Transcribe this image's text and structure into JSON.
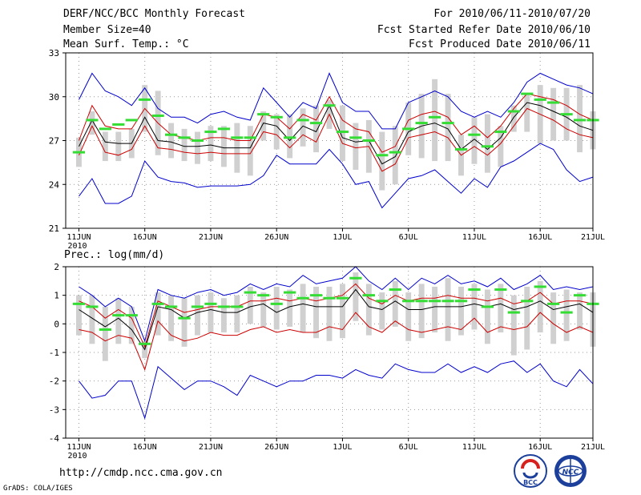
{
  "header": {
    "line1_left": "DERF/NCC/BCC Monthly Forecast",
    "line2_left": "Member Size=40",
    "line3_left": "Mean Surf. Temp.: °C",
    "line1_right": "For 2010/06/11-2010/07/20",
    "line2_right": "Fcst Started Refer Date 2010/06/10",
    "line3_right": "Fcst Produced Date 2010/06/11"
  },
  "footer": {
    "url": "http://cmdp.ncc.cma.gov.cn",
    "credit": "GrADS: COLA/IGES",
    "logo1_text": "BCC",
    "logo2_text": "NCC"
  },
  "colors": {
    "envelope": "#0000cc",
    "spread": "#cc0000",
    "mean": "#000000",
    "bar": "#d0d0d0",
    "marker": "#33dd33",
    "grid": "#999999"
  },
  "chart_data": [
    {
      "type": "line",
      "name": "temperature",
      "title": "Mean Surf. Temp.: °C",
      "ylim": [
        21,
        33
      ],
      "yticks": [
        21,
        24,
        27,
        30,
        33
      ],
      "x_range": [
        0,
        40
      ],
      "xticks": [
        {
          "x": 1,
          "label": "11JUN",
          "sub": "2010"
        },
        {
          "x": 6,
          "label": "16JUN",
          "sub": ""
        },
        {
          "x": 11,
          "label": "21JUN",
          "sub": ""
        },
        {
          "x": 16,
          "label": "26JUN",
          "sub": ""
        },
        {
          "x": 21,
          "label": "1JUL",
          "sub": ""
        },
        {
          "x": 26,
          "label": "6JUL",
          "sub": ""
        },
        {
          "x": 31,
          "label": "11JUL",
          "sub": ""
        },
        {
          "x": 36,
          "label": "16JUL",
          "sub": ""
        },
        {
          "x": 40,
          "label": "21JUL",
          "sub": ""
        }
      ],
      "grid": true,
      "series": [
        {
          "name": "max",
          "role": "envelope",
          "values": [
            29.8,
            31.6,
            30.4,
            30.0,
            29.4,
            30.6,
            29.2,
            28.6,
            28.6,
            28.2,
            28.8,
            29.0,
            28.6,
            28.4,
            30.6,
            29.6,
            28.6,
            29.6,
            29.2,
            31.6,
            29.6,
            29.0,
            29.0,
            27.8,
            27.8,
            29.6,
            30.0,
            30.4,
            30.0,
            29.0,
            28.6,
            29.0,
            28.6,
            29.6,
            31.0,
            31.6,
            31.2,
            30.8,
            30.6,
            30.2
          ]
        },
        {
          "name": "upper",
          "role": "spread",
          "values": [
            27.0,
            29.4,
            28.0,
            27.8,
            27.8,
            29.2,
            28.2,
            27.4,
            27.2,
            27.0,
            27.2,
            27.2,
            27.0,
            27.0,
            28.8,
            28.6,
            27.8,
            28.8,
            28.4,
            30.0,
            28.4,
            27.8,
            27.6,
            26.2,
            26.6,
            28.4,
            28.8,
            29.0,
            28.6,
            27.4,
            28.0,
            27.2,
            28.0,
            29.2,
            30.2,
            30.0,
            29.8,
            29.4,
            28.8,
            28.4
          ]
        },
        {
          "name": "mean",
          "role": "mean",
          "values": [
            26.6,
            28.4,
            26.9,
            26.8,
            26.8,
            28.6,
            27.0,
            26.9,
            26.6,
            26.6,
            26.7,
            26.5,
            26.5,
            26.5,
            28.2,
            28.0,
            27.0,
            28.0,
            27.6,
            29.4,
            27.2,
            26.9,
            27.0,
            25.4,
            25.9,
            27.6,
            28.0,
            28.2,
            27.8,
            26.4,
            27.1,
            26.4,
            27.2,
            28.6,
            29.6,
            29.4,
            29.0,
            28.6,
            28.0,
            27.7
          ]
        },
        {
          "name": "lower",
          "role": "spread",
          "values": [
            26.0,
            28.0,
            26.2,
            26.0,
            26.4,
            28.0,
            26.5,
            26.4,
            26.2,
            26.1,
            26.2,
            26.1,
            26.1,
            26.1,
            27.6,
            27.4,
            26.5,
            27.4,
            26.9,
            28.8,
            26.8,
            26.5,
            26.6,
            24.9,
            25.4,
            27.2,
            27.4,
            27.6,
            27.2,
            26.0,
            26.6,
            26.0,
            26.8,
            28.0,
            29.2,
            28.8,
            28.4,
            27.8,
            27.4,
            27.2
          ]
        },
        {
          "name": "min",
          "role": "envelope",
          "values": [
            23.2,
            24.4,
            22.7,
            22.7,
            23.2,
            25.6,
            24.5,
            24.2,
            24.1,
            23.8,
            23.9,
            23.9,
            23.9,
            24.0,
            24.6,
            26.0,
            25.4,
            25.4,
            25.4,
            26.4,
            25.4,
            24.0,
            24.2,
            22.4,
            23.4,
            24.4,
            24.6,
            25.0,
            24.2,
            23.4,
            24.4,
            23.8,
            25.2,
            25.6,
            26.2,
            26.8,
            26.4,
            25.0,
            24.2,
            24.5
          ]
        }
      ],
      "box_bottom": [
        25.2,
        27.4,
        25.6,
        25.6,
        25.8,
        27.6,
        26.0,
        25.8,
        25.6,
        25.4,
        25.6,
        25.2,
        24.8,
        24.6,
        27.0,
        26.4,
        25.8,
        26.6,
        26.2,
        27.8,
        25.6,
        25.0,
        24.8,
        23.6,
        24.0,
        26.0,
        25.8,
        25.6,
        25.6,
        24.6,
        25.4,
        24.8,
        25.2,
        27.6,
        27.6,
        26.8,
        27.0,
        27.0,
        26.2,
        26.4
      ],
      "box_top": [
        27.2,
        29.0,
        27.6,
        27.6,
        27.8,
        30.8,
        30.4,
        28.2,
        27.8,
        27.6,
        28.0,
        28.0,
        28.2,
        28.0,
        29.0,
        28.8,
        28.8,
        29.2,
        29.4,
        29.8,
        29.4,
        28.2,
        28.4,
        27.6,
        28.0,
        29.6,
        30.2,
        31.2,
        30.2,
        27.4,
        28.6,
        28.8,
        28.0,
        29.4,
        30.2,
        30.8,
        30.6,
        30.6,
        30.8,
        29.0
      ],
      "markers": [
        26.2,
        28.4,
        27.8,
        28.1,
        28.4,
        29.8,
        28.7,
        27.4,
        27.2,
        27.0,
        27.6,
        27.8,
        27.2,
        27.2,
        28.8,
        28.6,
        27.2,
        28.4,
        28.2,
        29.4,
        27.6,
        27.2,
        27.0,
        26.0,
        26.2,
        27.8,
        28.2,
        28.6,
        28.2,
        26.4,
        27.4,
        26.6,
        27.6,
        29.0,
        30.2,
        29.8,
        29.6,
        28.8,
        28.4,
        28.4
      ]
    },
    {
      "type": "line",
      "name": "precipitation",
      "title": "Prec.: log(mm/d)",
      "ylim": [
        -4,
        2
      ],
      "yticks": [
        -4,
        -3,
        -2,
        -1,
        0,
        1,
        2
      ],
      "x_range": [
        0,
        40
      ],
      "xticks": [
        {
          "x": 1,
          "label": "11JUN",
          "sub": "2010"
        },
        {
          "x": 6,
          "label": "16JUN",
          "sub": ""
        },
        {
          "x": 11,
          "label": "21JUN",
          "sub": ""
        },
        {
          "x": 16,
          "label": "26JUN",
          "sub": ""
        },
        {
          "x": 21,
          "label": "1JUL",
          "sub": ""
        },
        {
          "x": 26,
          "label": "6JUL",
          "sub": ""
        },
        {
          "x": 31,
          "label": "11JUL",
          "sub": ""
        },
        {
          "x": 36,
          "label": "16JUL",
          "sub": ""
        },
        {
          "x": 40,
          "label": "21JUL",
          "sub": ""
        }
      ],
      "grid": true,
      "series": [
        {
          "name": "max",
          "role": "envelope",
          "values": [
            1.3,
            1.0,
            0.6,
            0.9,
            0.6,
            -0.6,
            1.2,
            1.0,
            0.9,
            1.1,
            1.2,
            1.0,
            1.1,
            1.4,
            1.2,
            1.4,
            1.3,
            1.7,
            1.4,
            1.5,
            1.6,
            2.0,
            1.5,
            1.2,
            1.6,
            1.2,
            1.6,
            1.4,
            1.7,
            1.4,
            1.5,
            1.3,
            1.6,
            1.2,
            1.4,
            1.7,
            1.2,
            1.3,
            1.2,
            1.3
          ]
        },
        {
          "name": "upper",
          "role": "spread",
          "values": [
            0.8,
            0.6,
            0.2,
            0.5,
            0.2,
            -0.8,
            0.8,
            0.6,
            0.4,
            0.5,
            0.6,
            0.6,
            0.6,
            0.8,
            0.8,
            0.9,
            0.8,
            0.9,
            0.8,
            0.9,
            1.0,
            1.4,
            0.9,
            0.7,
            1.0,
            0.8,
            0.9,
            0.9,
            1.0,
            0.9,
            0.9,
            0.8,
            0.9,
            0.7,
            0.8,
            1.1,
            0.7,
            0.8,
            0.8,
            0.7
          ]
        },
        {
          "name": "mean",
          "role": "mean",
          "values": [
            0.5,
            0.2,
            -0.1,
            0.2,
            -0.2,
            -0.9,
            0.6,
            0.5,
            0.2,
            0.4,
            0.5,
            0.4,
            0.4,
            0.6,
            0.7,
            0.4,
            0.6,
            0.7,
            0.6,
            0.6,
            0.6,
            1.2,
            0.6,
            0.5,
            0.8,
            0.5,
            0.5,
            0.6,
            0.6,
            0.6,
            0.7,
            0.6,
            0.7,
            0.5,
            0.6,
            0.8,
            0.5,
            0.6,
            0.7,
            0.4
          ]
        },
        {
          "name": "lower",
          "role": "spread",
          "values": [
            -0.2,
            -0.3,
            -0.6,
            -0.4,
            -0.5,
            -1.6,
            0.1,
            -0.4,
            -0.6,
            -0.5,
            -0.3,
            -0.4,
            -0.4,
            -0.2,
            -0.1,
            -0.3,
            -0.2,
            -0.3,
            -0.3,
            -0.1,
            -0.2,
            0.4,
            -0.1,
            -0.3,
            0.1,
            -0.2,
            -0.3,
            -0.2,
            -0.1,
            -0.2,
            0.2,
            -0.3,
            -0.1,
            -0.2,
            -0.1,
            0.4,
            0.0,
            -0.3,
            -0.1,
            -0.3
          ]
        },
        {
          "name": "min",
          "role": "envelope",
          "values": [
            -2.0,
            -2.6,
            -2.5,
            -2.0,
            -2.0,
            -3.3,
            -1.5,
            -1.9,
            -2.3,
            -2.0,
            -2.0,
            -2.2,
            -2.5,
            -1.8,
            -2.0,
            -2.2,
            -2.0,
            -2.0,
            -1.8,
            -1.8,
            -1.9,
            -1.6,
            -1.8,
            -1.9,
            -1.4,
            -1.6,
            -1.7,
            -1.7,
            -1.4,
            -1.7,
            -1.5,
            -1.7,
            -1.4,
            -1.3,
            -1.7,
            -1.4,
            -2.0,
            -2.2,
            -1.6,
            -2.1
          ]
        }
      ],
      "box_bottom": [
        -0.4,
        -0.7,
        -1.3,
        -0.7,
        -0.7,
        -1.2,
        -0.4,
        -0.6,
        -0.8,
        -0.4,
        -0.3,
        -0.3,
        -0.3,
        0.0,
        -0.1,
        -0.2,
        -0.1,
        -0.3,
        -0.5,
        -0.6,
        -0.5,
        0.1,
        -0.4,
        -0.2,
        -0.1,
        -0.6,
        -0.5,
        -0.3,
        -0.6,
        -0.4,
        -0.2,
        -0.7,
        -0.3,
        -1.1,
        -0.9,
        -0.3,
        -0.7,
        -0.6,
        -0.2,
        -0.8
      ],
      "box_top": [
        1.0,
        1.0,
        0.6,
        0.9,
        0.6,
        -0.6,
        1.1,
        1.0,
        0.9,
        1.0,
        1.1,
        0.9,
        1.0,
        1.3,
        1.1,
        1.3,
        1.2,
        1.4,
        1.3,
        1.3,
        1.4,
        1.8,
        1.4,
        1.1,
        1.5,
        1.1,
        1.4,
        1.3,
        1.6,
        1.3,
        1.4,
        1.2,
        1.4,
        1.0,
        1.3,
        1.5,
        1.1,
        1.2,
        1.1,
        1.1
      ],
      "markers": [
        0.7,
        0.6,
        -0.2,
        0.3,
        0.3,
        -0.7,
        0.7,
        0.6,
        0.2,
        0.6,
        0.7,
        0.6,
        0.6,
        1.1,
        1.0,
        0.7,
        1.1,
        0.9,
        1.0,
        0.9,
        0.9,
        1.6,
        1.0,
        0.8,
        1.2,
        0.8,
        0.8,
        0.8,
        0.8,
        0.8,
        1.2,
        0.6,
        1.2,
        0.4,
        0.8,
        1.3,
        0.7,
        0.4,
        1.0,
        0.7
      ]
    }
  ]
}
